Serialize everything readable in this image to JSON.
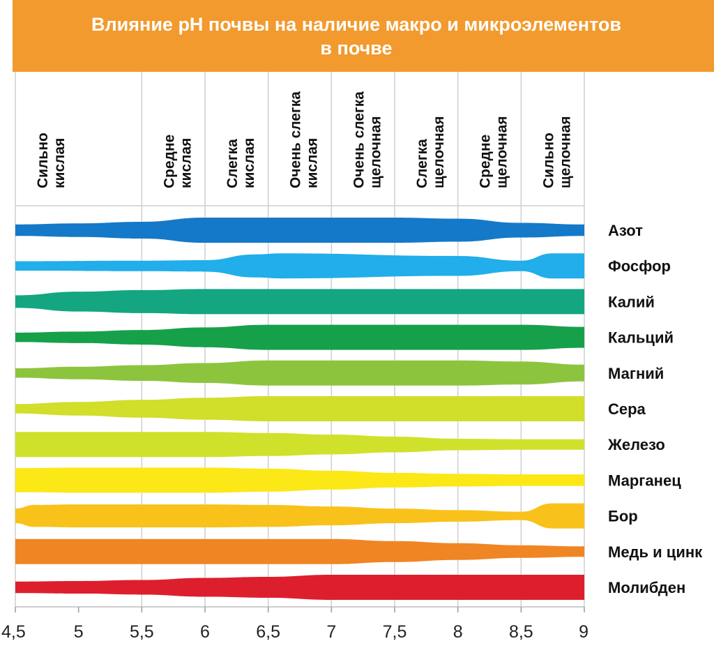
{
  "title": {
    "line1": "Влияние pH почвы на наличие макро  и микроэлементов",
    "line2": "в почве"
  },
  "chart_data": {
    "type": "area",
    "title": "Влияние pH почвы на наличие макро  и микроэлементов в почве",
    "xlabel": "",
    "ylabel": "",
    "xlim": [
      4.5,
      9
    ],
    "x_ticks": [
      "4,5",
      "5",
      "5,5",
      "6",
      "6,5",
      "7",
      "7,5",
      "8",
      "8,5",
      "9"
    ],
    "ph_zones": [
      {
        "from": 4.5,
        "to": 5.5,
        "line1": "Сильно",
        "line2": "кислая"
      },
      {
        "from": 5.5,
        "to": 6.0,
        "line1": "Средне",
        "line2": "кислая"
      },
      {
        "from": 6.0,
        "to": 6.5,
        "line1": "Слегка",
        "line2": "кислая"
      },
      {
        "from": 6.5,
        "to": 7.0,
        "line1": "Очень слегка",
        "line2": "кислая"
      },
      {
        "from": 7.0,
        "to": 7.5,
        "line1": "Очень слегка",
        "line2": "щелочная"
      },
      {
        "from": 7.5,
        "to": 8.0,
        "line1": "Слегка",
        "line2": "щелочная"
      },
      {
        "from": 8.0,
        "to": 8.5,
        "line1": "Средне",
        "line2": "щелочная"
      },
      {
        "from": 8.5,
        "to": 9.0,
        "line1": "Сильно",
        "line2": "щелочная"
      }
    ],
    "value_scale": "relative availability, 0–1",
    "series": [
      {
        "name": "Азот",
        "color": "#1479c8",
        "points": [
          [
            4.5,
            0.35
          ],
          [
            5.0,
            0.45
          ],
          [
            5.5,
            0.6
          ],
          [
            6.0,
            1.0
          ],
          [
            7.5,
            1.0
          ],
          [
            8.0,
            0.9
          ],
          [
            8.5,
            0.5
          ],
          [
            9.0,
            0.35
          ]
        ]
      },
      {
        "name": "Фосфор",
        "color": "#21aeea",
        "points": [
          [
            4.5,
            0.25
          ],
          [
            5.5,
            0.3
          ],
          [
            6.0,
            0.35
          ],
          [
            6.4,
            0.9
          ],
          [
            6.6,
            1.0
          ],
          [
            8.0,
            0.75
          ],
          [
            8.5,
            0.3
          ],
          [
            8.75,
            1.0
          ],
          [
            9.0,
            1.0
          ]
        ]
      },
      {
        "name": "Калий",
        "color": "#14a680",
        "points": [
          [
            4.5,
            0.4
          ],
          [
            5.0,
            0.75
          ],
          [
            5.5,
            0.9
          ],
          [
            6.0,
            1.0
          ],
          [
            9.0,
            1.0
          ]
        ]
      },
      {
        "name": "Кальций",
        "color": "#16a04a",
        "points": [
          [
            4.5,
            0.25
          ],
          [
            5.0,
            0.35
          ],
          [
            5.5,
            0.5
          ],
          [
            6.0,
            0.75
          ],
          [
            6.5,
            1.0
          ],
          [
            8.5,
            1.0
          ],
          [
            9.0,
            0.8
          ]
        ]
      },
      {
        "name": "Магний",
        "color": "#8dc43e",
        "points": [
          [
            4.5,
            0.25
          ],
          [
            5.0,
            0.4
          ],
          [
            5.5,
            0.55
          ],
          [
            6.0,
            0.75
          ],
          [
            6.5,
            1.0
          ],
          [
            8.0,
            1.0
          ],
          [
            8.5,
            0.9
          ],
          [
            9.0,
            0.6
          ]
        ]
      },
      {
        "name": "Сера",
        "color": "#d1de2a",
        "points": [
          [
            4.5,
            0.25
          ],
          [
            5.0,
            0.45
          ],
          [
            5.5,
            0.65
          ],
          [
            6.0,
            0.85
          ],
          [
            6.5,
            1.0
          ],
          [
            9.0,
            1.0
          ]
        ]
      },
      {
        "name": "Железо",
        "color": "#cfe12b",
        "points": [
          [
            4.5,
            1.0
          ],
          [
            6.0,
            1.0
          ],
          [
            6.5,
            0.9
          ],
          [
            7.0,
            0.75
          ],
          [
            7.5,
            0.55
          ],
          [
            8.0,
            0.35
          ],
          [
            8.5,
            0.3
          ],
          [
            9.0,
            0.3
          ]
        ]
      },
      {
        "name": "Марганец",
        "color": "#fbe816",
        "points": [
          [
            4.5,
            0.95
          ],
          [
            5.0,
            1.0
          ],
          [
            6.0,
            1.0
          ],
          [
            6.5,
            0.9
          ],
          [
            7.0,
            0.7
          ],
          [
            7.5,
            0.5
          ],
          [
            8.0,
            0.4
          ],
          [
            8.5,
            0.35
          ],
          [
            9.0,
            0.35
          ]
        ]
      },
      {
        "name": "Бор",
        "color": "#f8c21b",
        "points": [
          [
            4.5,
            0.5
          ],
          [
            4.65,
            0.85
          ],
          [
            5.0,
            0.9
          ],
          [
            6.0,
            0.9
          ],
          [
            6.5,
            0.85
          ],
          [
            7.0,
            0.7
          ],
          [
            7.5,
            0.5
          ],
          [
            8.0,
            0.35
          ],
          [
            8.5,
            0.2
          ],
          [
            8.75,
            1.0
          ],
          [
            9.0,
            1.0
          ]
        ]
      },
      {
        "name": "Медь и цинк",
        "color": "#f08524",
        "points": [
          [
            4.5,
            1.0
          ],
          [
            7.0,
            1.0
          ],
          [
            7.5,
            0.8
          ],
          [
            8.0,
            0.6
          ],
          [
            8.5,
            0.4
          ],
          [
            9.0,
            0.3
          ]
        ]
      },
      {
        "name": "Молибден",
        "color": "#dd1f2d",
        "points": [
          [
            4.5,
            0.35
          ],
          [
            5.0,
            0.4
          ],
          [
            5.5,
            0.5
          ],
          [
            6.0,
            0.7
          ],
          [
            6.5,
            0.8
          ],
          [
            7.0,
            1.0
          ],
          [
            9.0,
            1.0
          ]
        ]
      }
    ]
  }
}
